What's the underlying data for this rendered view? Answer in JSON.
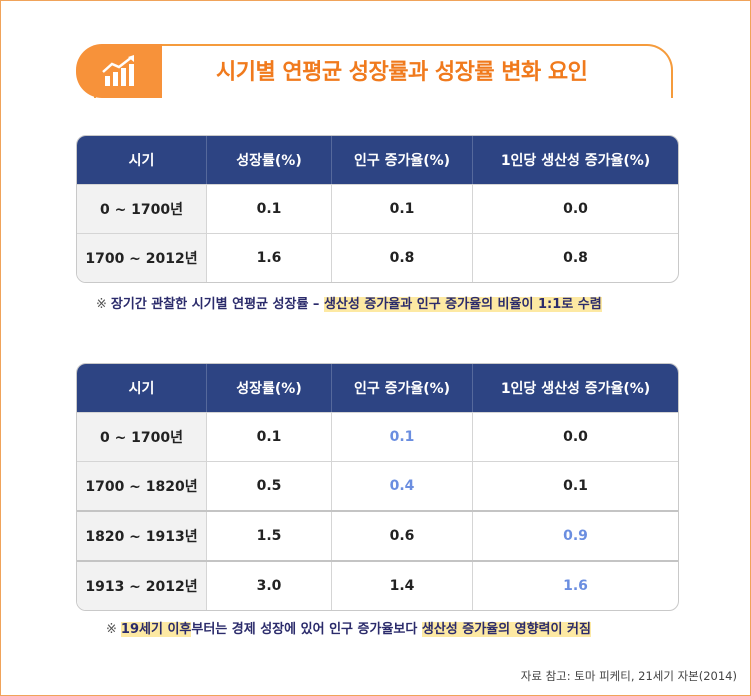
{
  "title": "시기별 연평균 성장률과 성장률 변화 요인",
  "colors": {
    "accent": "#f7923a",
    "header_bg": "#2d4483",
    "highlight": "#6b8ee0",
    "note_highlight": "#fde9a3"
  },
  "icons": {
    "title_icon": "growth-chart-icon"
  },
  "table1": {
    "headers": [
      "시기",
      "성장률(%)",
      "인구 증가율(%)",
      "1인당 생산성 증가율(%)"
    ],
    "rows": [
      [
        "0 ~ 1700년",
        "0.1",
        "0.1",
        "0.0"
      ],
      [
        "1700 ~ 2012년",
        "1.6",
        "0.8",
        "0.8"
      ]
    ]
  },
  "note1": {
    "mark": "※",
    "text_plain": "장기간 관찰한 시기별 연평균 성장률 – ",
    "text_highlight": "생산성 증가율과 인구 증가율의 비율이 1:1로 수렴"
  },
  "table2": {
    "headers": [
      "시기",
      "성장률(%)",
      "인구 증가율(%)",
      "1인당 생산성 증가율(%)"
    ],
    "rows": [
      [
        "0 ~ 1700년",
        "0.1",
        "0.1",
        "0.0"
      ],
      [
        "1700 ~ 1820년",
        "0.5",
        "0.4",
        "0.1"
      ],
      [
        "1820 ~ 1913년",
        "1.5",
        "0.6",
        "0.9"
      ],
      [
        "1913 ~ 2012년",
        "3.0",
        "1.4",
        "1.6"
      ]
    ]
  },
  "note2": {
    "mark": "※",
    "text_highlight1": "19세기 이후",
    "text_plain": "부터는 경제 성장에 있어 인구 증가율보다 ",
    "text_highlight2": "생산성 증가율의 영향력이 커짐"
  },
  "source": "자료 참고: 토마 피케티, 21세기 자본(2014)"
}
